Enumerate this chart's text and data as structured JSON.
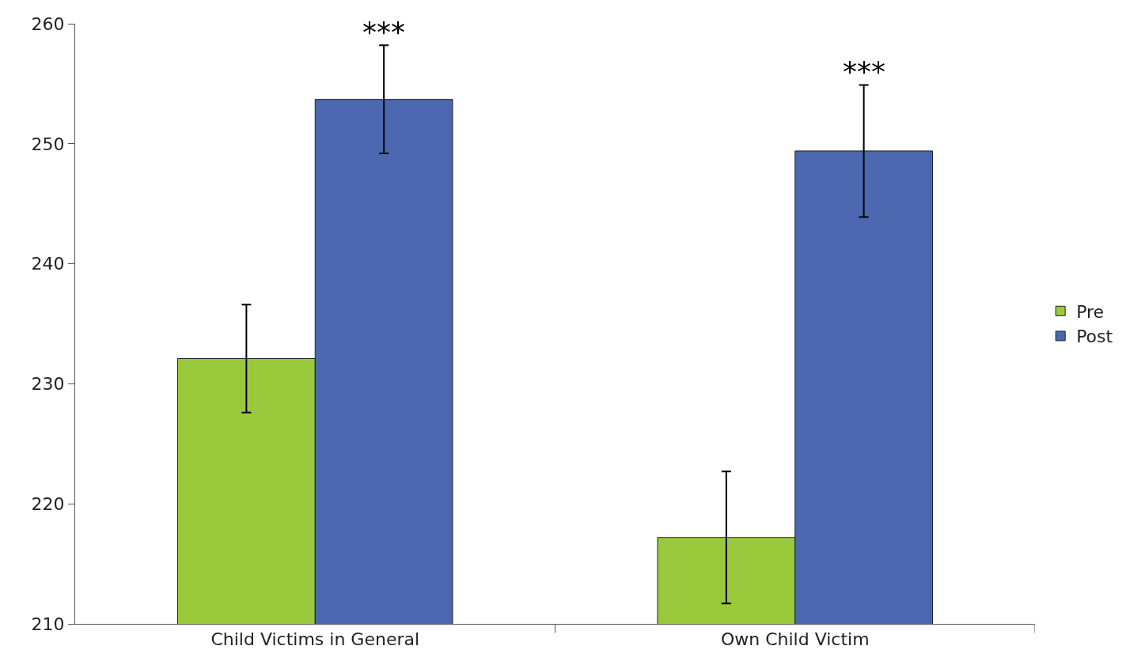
{
  "chart_data": {
    "type": "bar",
    "categories": [
      "Child Victims in General",
      "Own Child Victim"
    ],
    "series": [
      {
        "name": "Pre",
        "color": "#9aca3c",
        "values": [
          232.1,
          217.2
        ],
        "errors": [
          4.5,
          5.5
        ]
      },
      {
        "name": "Post",
        "color": "#4a67b0",
        "values": [
          253.7,
          249.4
        ],
        "errors": [
          4.5,
          5.5
        ]
      }
    ],
    "ylim": [
      210,
      260
    ],
    "yticks": [
      210,
      220,
      230,
      240,
      250,
      260
    ],
    "annotations": [
      "***",
      "***"
    ],
    "grid": false,
    "legend": "right"
  }
}
